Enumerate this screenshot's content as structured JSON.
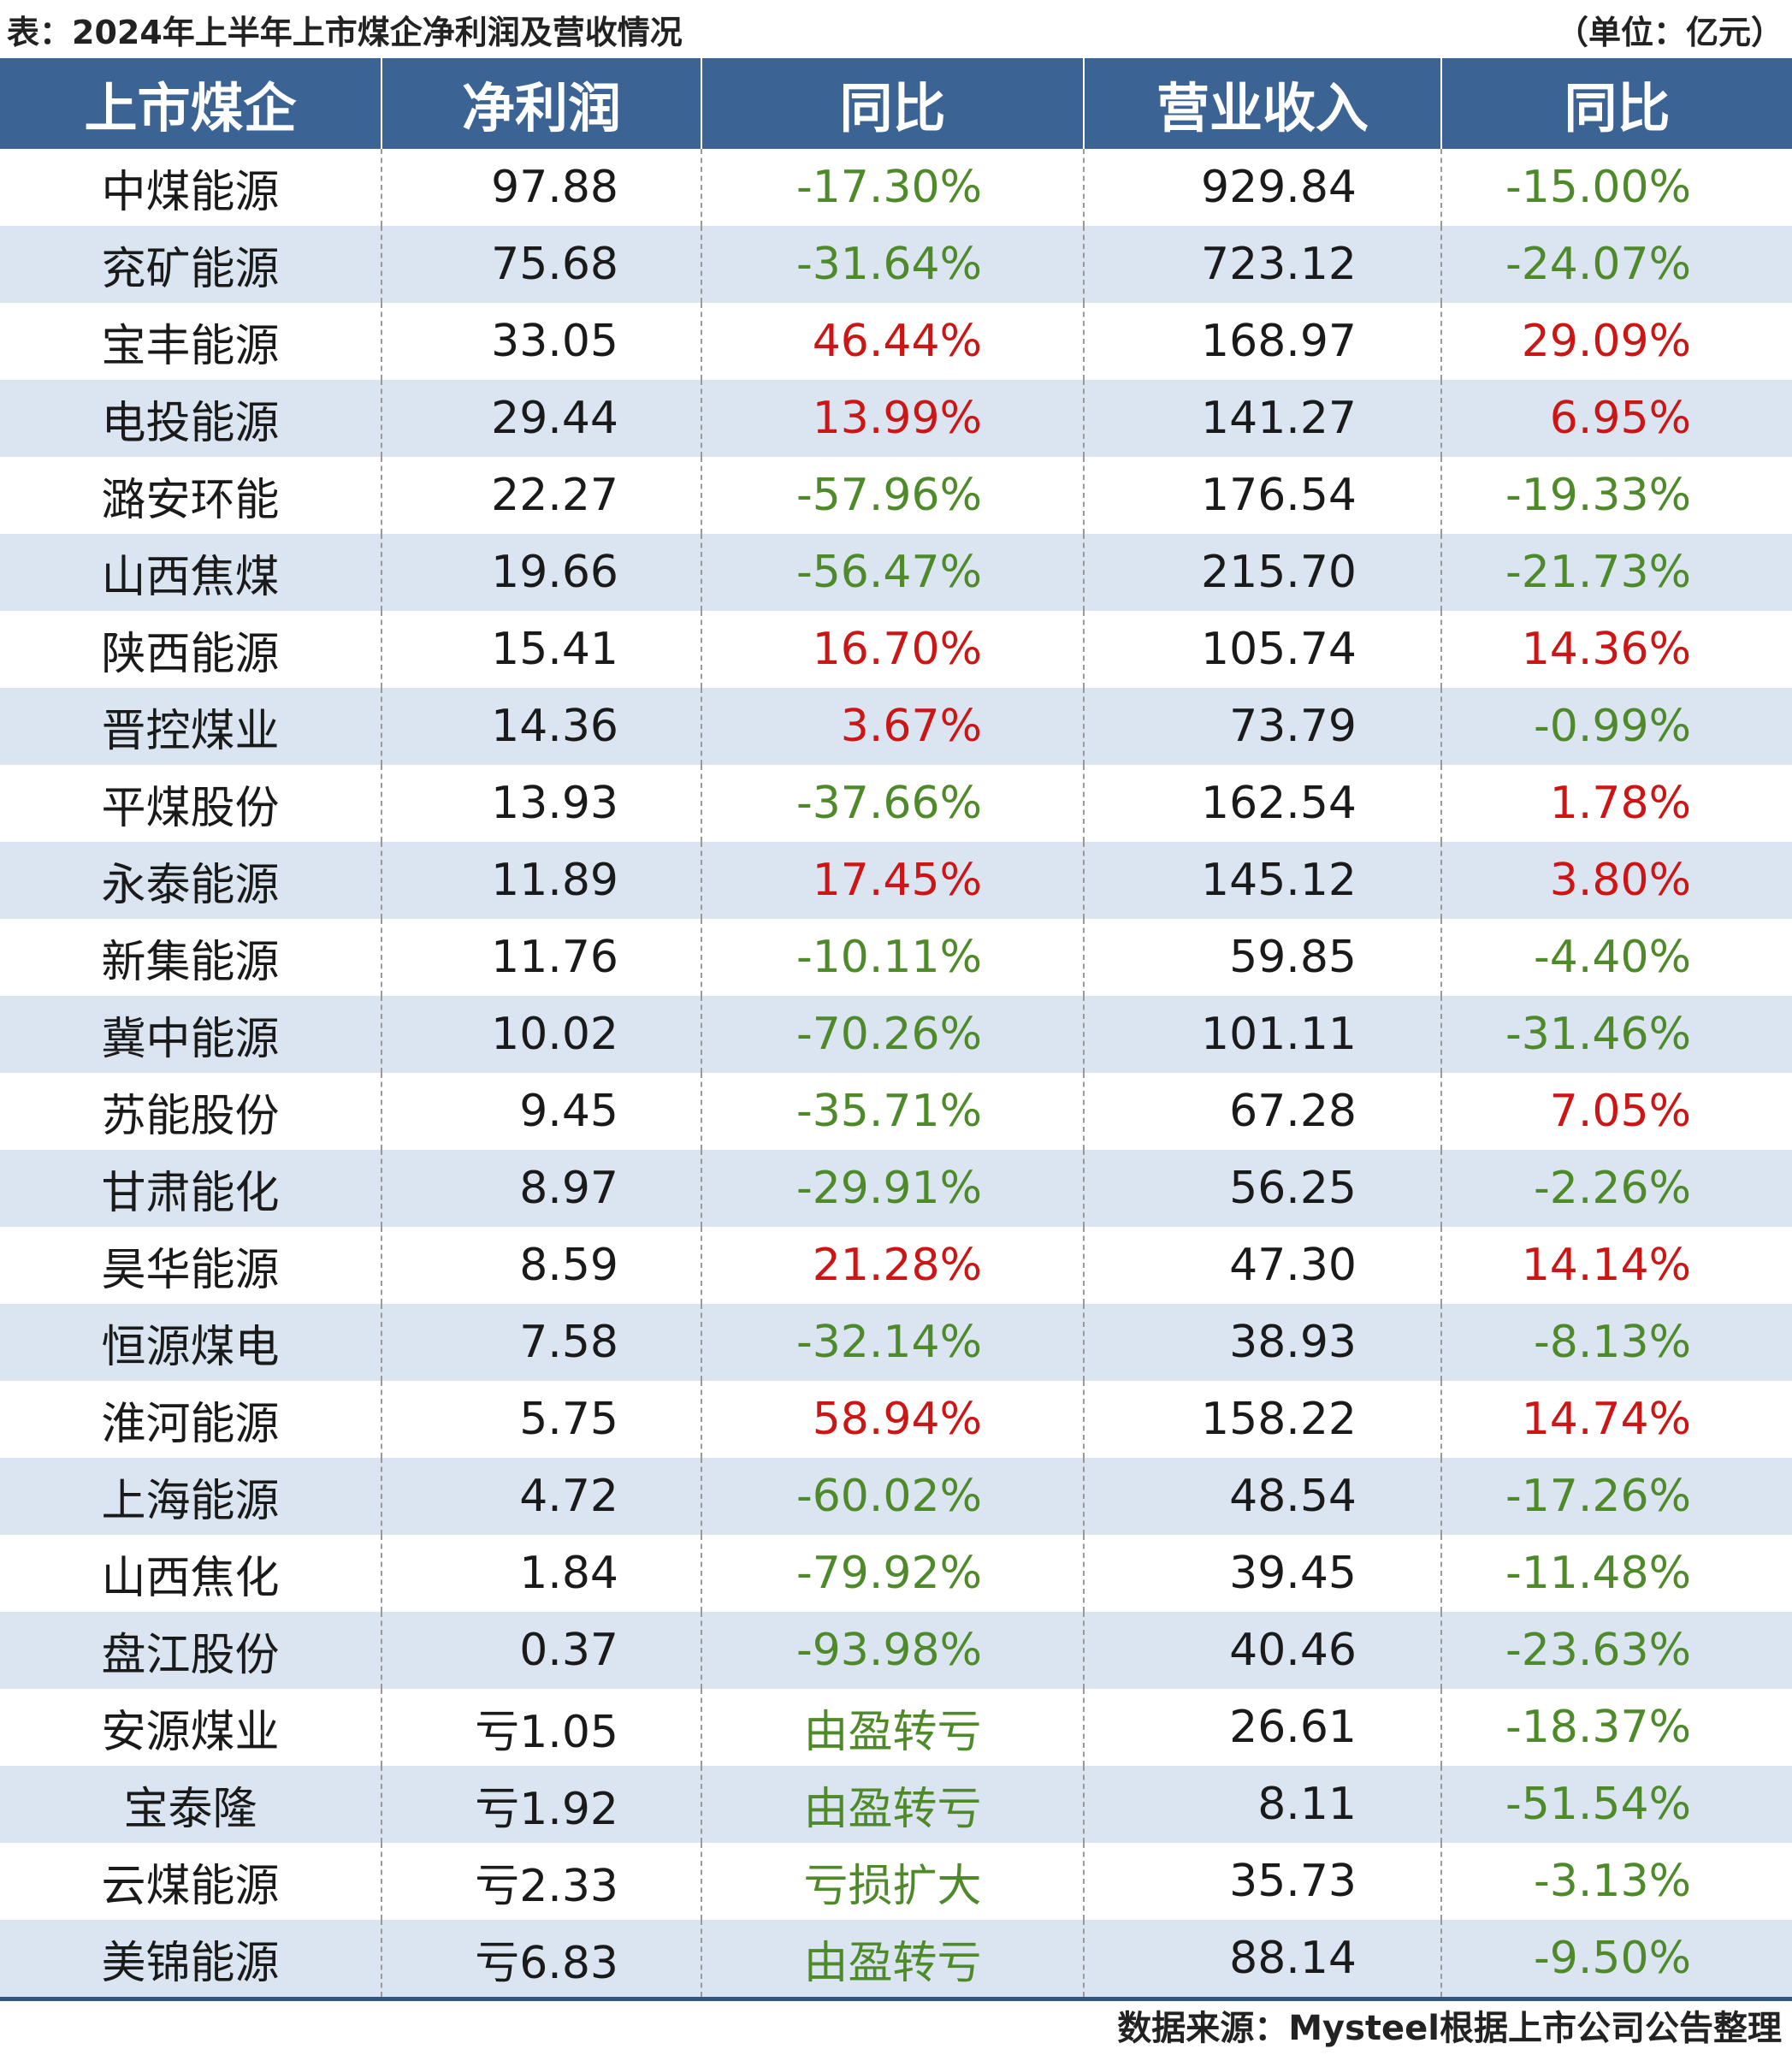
{
  "caption": {
    "title": "表：2024年上半年上市煤企净利润及营收情况",
    "unit": "（单位：亿元）"
  },
  "table": {
    "headers": [
      "上市煤企",
      "净利润",
      "同比",
      "营业收入",
      "同比"
    ],
    "colors": {
      "header_bg": "#3b6394",
      "stripe_bg": "#dae5f1",
      "decrease": "#4e8a2a",
      "increase": "#cc1515"
    },
    "rows": [
      {
        "company": "中煤能源",
        "profit": "97.88",
        "profit_yoy": "-17.30%",
        "profit_yoy_type": "neg",
        "revenue": "929.84",
        "revenue_yoy": "-15.00%",
        "revenue_yoy_type": "neg"
      },
      {
        "company": "兖矿能源",
        "profit": "75.68",
        "profit_yoy": "-31.64%",
        "profit_yoy_type": "neg",
        "revenue": "723.12",
        "revenue_yoy": "-24.07%",
        "revenue_yoy_type": "neg"
      },
      {
        "company": "宝丰能源",
        "profit": "33.05",
        "profit_yoy": "46.44%",
        "profit_yoy_type": "pos",
        "revenue": "168.97",
        "revenue_yoy": "29.09%",
        "revenue_yoy_type": "pos"
      },
      {
        "company": "电投能源",
        "profit": "29.44",
        "profit_yoy": "13.99%",
        "profit_yoy_type": "pos",
        "revenue": "141.27",
        "revenue_yoy": "6.95%",
        "revenue_yoy_type": "pos"
      },
      {
        "company": "潞安环能",
        "profit": "22.27",
        "profit_yoy": "-57.96%",
        "profit_yoy_type": "neg",
        "revenue": "176.54",
        "revenue_yoy": "-19.33%",
        "revenue_yoy_type": "neg"
      },
      {
        "company": "山西焦煤",
        "profit": "19.66",
        "profit_yoy": "-56.47%",
        "profit_yoy_type": "neg",
        "revenue": "215.70",
        "revenue_yoy": "-21.73%",
        "revenue_yoy_type": "neg"
      },
      {
        "company": "陕西能源",
        "profit": "15.41",
        "profit_yoy": "16.70%",
        "profit_yoy_type": "pos",
        "revenue": "105.74",
        "revenue_yoy": "14.36%",
        "revenue_yoy_type": "pos"
      },
      {
        "company": "晋控煤业",
        "profit": "14.36",
        "profit_yoy": "3.67%",
        "profit_yoy_type": "pos",
        "revenue": "73.79",
        "revenue_yoy": "-0.99%",
        "revenue_yoy_type": "neg"
      },
      {
        "company": "平煤股份",
        "profit": "13.93",
        "profit_yoy": "-37.66%",
        "profit_yoy_type": "neg",
        "revenue": "162.54",
        "revenue_yoy": "1.78%",
        "revenue_yoy_type": "pos"
      },
      {
        "company": "永泰能源",
        "profit": "11.89",
        "profit_yoy": "17.45%",
        "profit_yoy_type": "pos",
        "revenue": "145.12",
        "revenue_yoy": "3.80%",
        "revenue_yoy_type": "pos"
      },
      {
        "company": "新集能源",
        "profit": "11.76",
        "profit_yoy": "-10.11%",
        "profit_yoy_type": "neg",
        "revenue": "59.85",
        "revenue_yoy": "-4.40%",
        "revenue_yoy_type": "neg"
      },
      {
        "company": "冀中能源",
        "profit": "10.02",
        "profit_yoy": "-70.26%",
        "profit_yoy_type": "neg",
        "revenue": "101.11",
        "revenue_yoy": "-31.46%",
        "revenue_yoy_type": "neg"
      },
      {
        "company": "苏能股份",
        "profit": "9.45",
        "profit_yoy": "-35.71%",
        "profit_yoy_type": "neg",
        "revenue": "67.28",
        "revenue_yoy": "7.05%",
        "revenue_yoy_type": "pos"
      },
      {
        "company": "甘肃能化",
        "profit": "8.97",
        "profit_yoy": "-29.91%",
        "profit_yoy_type": "neg",
        "revenue": "56.25",
        "revenue_yoy": "-2.26%",
        "revenue_yoy_type": "neg"
      },
      {
        "company": "昊华能源",
        "profit": "8.59",
        "profit_yoy": "21.28%",
        "profit_yoy_type": "pos",
        "revenue": "47.30",
        "revenue_yoy": "14.14%",
        "revenue_yoy_type": "pos"
      },
      {
        "company": "恒源煤电",
        "profit": "7.58",
        "profit_yoy": "-32.14%",
        "profit_yoy_type": "neg",
        "revenue": "38.93",
        "revenue_yoy": "-8.13%",
        "revenue_yoy_type": "neg"
      },
      {
        "company": "淮河能源",
        "profit": "5.75",
        "profit_yoy": "58.94%",
        "profit_yoy_type": "pos",
        "revenue": "158.22",
        "revenue_yoy": "14.74%",
        "revenue_yoy_type": "pos"
      },
      {
        "company": "上海能源",
        "profit": "4.72",
        "profit_yoy": "-60.02%",
        "profit_yoy_type": "neg",
        "revenue": "48.54",
        "revenue_yoy": "-17.26%",
        "revenue_yoy_type": "neg"
      },
      {
        "company": "山西焦化",
        "profit": "1.84",
        "profit_yoy": "-79.92%",
        "profit_yoy_type": "neg",
        "revenue": "39.45",
        "revenue_yoy": "-11.48%",
        "revenue_yoy_type": "neg"
      },
      {
        "company": "盘江股份",
        "profit": "0.37",
        "profit_yoy": "-93.98%",
        "profit_yoy_type": "neg",
        "revenue": "40.46",
        "revenue_yoy": "-23.63%",
        "revenue_yoy_type": "neg"
      },
      {
        "company": "安源煤业",
        "profit": "亏1.05",
        "profit_yoy": "由盈转亏",
        "profit_yoy_type": "neg-word",
        "revenue": "26.61",
        "revenue_yoy": "-18.37%",
        "revenue_yoy_type": "neg"
      },
      {
        "company": "宝泰隆",
        "profit": "亏1.92",
        "profit_yoy": "由盈转亏",
        "profit_yoy_type": "neg-word",
        "revenue": "8.11",
        "revenue_yoy": "-51.54%",
        "revenue_yoy_type": "neg"
      },
      {
        "company": "云煤能源",
        "profit": "亏2.33",
        "profit_yoy": "亏损扩大",
        "profit_yoy_type": "neg-word",
        "revenue": "35.73",
        "revenue_yoy": "-3.13%",
        "revenue_yoy_type": "neg"
      },
      {
        "company": "美锦能源",
        "profit": "亏6.83",
        "profit_yoy": "由盈转亏",
        "profit_yoy_type": "neg-word",
        "revenue": "88.14",
        "revenue_yoy": "-9.50%",
        "revenue_yoy_type": "neg"
      }
    ]
  },
  "source": "数据来源：Mysteel根据上市公司公告整理"
}
